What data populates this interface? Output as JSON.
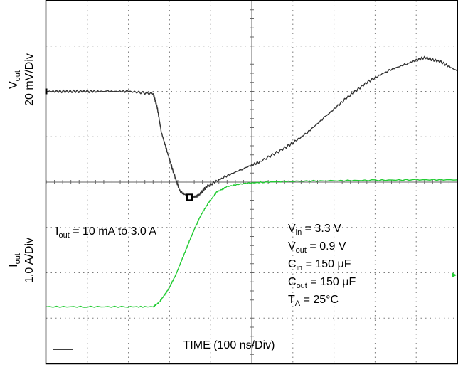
{
  "chart_data": {
    "type": "line",
    "xlabel": "TIME (100 ns/Div)",
    "grid": true,
    "divisions": {
      "x": 10,
      "y": 8
    },
    "panels": [
      {
        "id": "vout",
        "ylabel": {
          "main": "V",
          "sub": "out",
          "scale": "20 mV/Div"
        },
        "series": [
          {
            "color": "#333333",
            "points": [
              [
                0.0,
                0.0
              ],
              [
                0.5,
                0.0
              ],
              [
                1.0,
                0.0
              ],
              [
                1.5,
                0.0
              ],
              [
                2.0,
                0.0
              ],
              [
                2.6,
                -0.05
              ],
              [
                2.7,
                -0.35
              ],
              [
                2.8,
                -0.9
              ],
              [
                2.95,
                -1.35
              ],
              [
                3.1,
                -1.8
              ],
              [
                3.25,
                -2.2
              ],
              [
                3.5,
                -2.35
              ],
              [
                3.7,
                -2.3
              ],
              [
                3.9,
                -2.1
              ],
              [
                4.3,
                -1.9
              ],
              [
                4.8,
                -1.7
              ],
              [
                5.2,
                -1.55
              ],
              [
                5.8,
                -1.25
              ],
              [
                6.3,
                -0.95
              ],
              [
                6.8,
                -0.55
              ],
              [
                7.3,
                -0.15
              ],
              [
                7.8,
                0.2
              ],
              [
                8.3,
                0.45
              ],
              [
                8.8,
                0.62
              ],
              [
                9.2,
                0.75
              ],
              [
                9.6,
                0.65
              ],
              [
                10.0,
                0.45
              ]
            ]
          }
        ]
      },
      {
        "id": "iout",
        "ylabel": {
          "main": "I",
          "sub": "out",
          "scale": "1.0 A/Div"
        },
        "series": [
          {
            "color": "#22cc33",
            "points": [
              [
                0.0,
                -0.75
              ],
              [
                1.0,
                -0.75
              ],
              [
                2.0,
                -0.75
              ],
              [
                2.6,
                -0.75
              ],
              [
                2.75,
                -0.65
              ],
              [
                2.95,
                -0.4
              ],
              [
                3.15,
                -0.05
              ],
              [
                3.35,
                0.4
              ],
              [
                3.55,
                0.85
              ],
              [
                3.75,
                1.25
              ],
              [
                3.95,
                1.55
              ],
              [
                4.15,
                1.78
              ],
              [
                4.4,
                1.9
              ],
              [
                4.8,
                1.97
              ],
              [
                5.3,
                2.0
              ],
              [
                6.0,
                2.02
              ],
              [
                7.0,
                2.03
              ],
              [
                8.0,
                2.04
              ],
              [
                9.0,
                2.05
              ],
              [
                10.0,
                2.05
              ]
            ]
          }
        ],
        "annotations": {
          "condition": {
            "main": "I",
            "sub": "out",
            "rest": " = 10 mA to 3.0 A"
          },
          "params": [
            {
              "main": "V",
              "sub": "in",
              "rest": " = 3.3 V"
            },
            {
              "main": "V",
              "sub": "out",
              "rest": " = 0.9 V"
            },
            {
              "main": "C",
              "sub": "in",
              "rest": " = 150 μF"
            },
            {
              "main": "C",
              "sub": "out",
              "rest": " = 150 μF"
            },
            {
              "main": "T",
              "sub": "A",
              "rest": " = 25°C"
            }
          ]
        }
      }
    ]
  }
}
